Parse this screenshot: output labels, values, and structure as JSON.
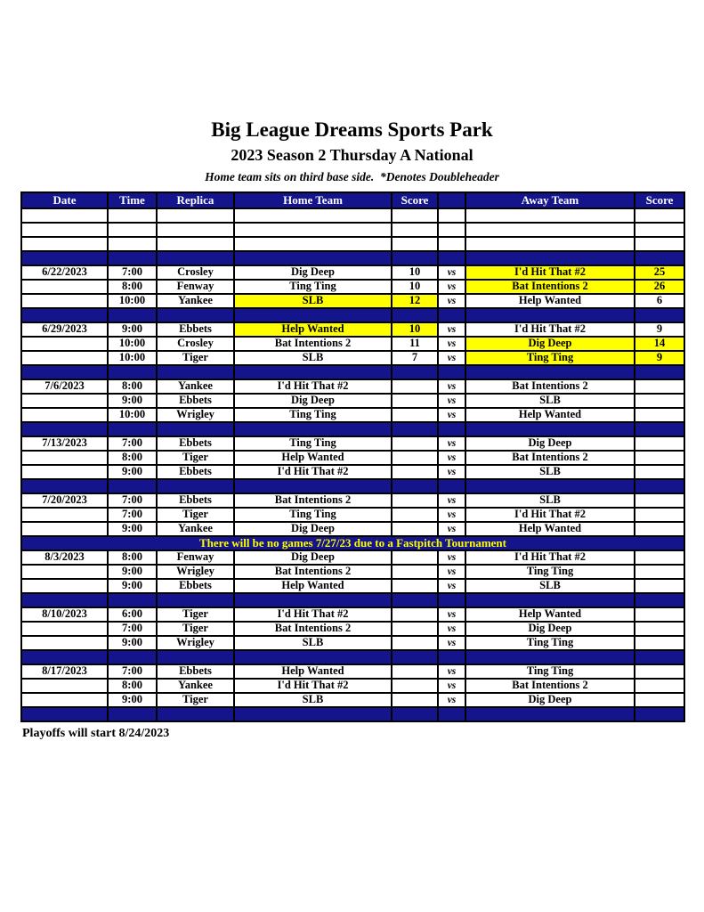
{
  "header": {
    "title": "Big League Dreams Sports Park",
    "subtitle": "2023 Season 2 Thursday A National",
    "note": "Home team sits on third base side.  *Denotes Doubleheader"
  },
  "colors": {
    "navy": "#14148C",
    "highlight_yellow": "#FFFF00",
    "header_text": "#FFFFFF",
    "announcement_text": "#FFFF00",
    "border": "#000000"
  },
  "table": {
    "headers": [
      "Date",
      "Time",
      "Replica",
      "Home Team",
      "Score",
      "",
      "Away Team",
      "Score"
    ],
    "vs_label": "vs",
    "empty_row_count": 3,
    "announcement": "There will be no games 7/27/23 due to a Fastpitch Tournament",
    "blocks": [
      {
        "date": "6/22/2023",
        "separator_before": "plain",
        "games": [
          {
            "time": "7:00",
            "replica": "Crosley",
            "home": "Dig Deep",
            "home_score": "10",
            "away": "I'd Hit That #2",
            "away_score": "25",
            "winner": "away"
          },
          {
            "time": "8:00",
            "replica": "Fenway",
            "home": "Ting Ting",
            "home_score": "10",
            "away": "Bat Intentions 2",
            "away_score": "26",
            "winner": "away"
          },
          {
            "time": "10:00",
            "replica": "Yankee",
            "home": "SLB",
            "home_score": "12",
            "away": "Help Wanted",
            "away_score": "6",
            "winner": "home"
          }
        ]
      },
      {
        "date": "6/29/2023",
        "separator_before": "plain",
        "games": [
          {
            "time": "9:00",
            "replica": "Ebbets",
            "home": "Help Wanted",
            "home_score": "10",
            "away": "I'd Hit That #2",
            "away_score": "9",
            "winner": "home"
          },
          {
            "time": "10:00",
            "replica": "Crosley",
            "home": "Bat Intentions 2",
            "home_score": "11",
            "away": "Dig Deep",
            "away_score": "14",
            "winner": "away"
          },
          {
            "time": "10:00",
            "replica": "Tiger",
            "home": "SLB",
            "home_score": "7",
            "away": "Ting Ting",
            "away_score": "9",
            "winner": "away"
          }
        ]
      },
      {
        "date": "7/6/2023",
        "separator_before": "plain",
        "games": [
          {
            "time": "8:00",
            "replica": "Yankee",
            "home": "I'd Hit That #2",
            "home_score": "",
            "away": "Bat Intentions 2",
            "away_score": "",
            "winner": ""
          },
          {
            "time": "9:00",
            "replica": "Ebbets",
            "home": "Dig Deep",
            "home_score": "",
            "away": "SLB",
            "away_score": "",
            "winner": ""
          },
          {
            "time": "10:00",
            "replica": "Wrigley",
            "home": "Ting Ting",
            "home_score": "",
            "away": "Help Wanted",
            "away_score": "",
            "winner": ""
          }
        ]
      },
      {
        "date": "7/13/2023",
        "separator_before": "plain",
        "games": [
          {
            "time": "7:00",
            "replica": "Ebbets",
            "home": "Ting Ting",
            "home_score": "",
            "away": "Dig Deep",
            "away_score": "",
            "winner": ""
          },
          {
            "time": "8:00",
            "replica": "Tiger",
            "home": "Help Wanted",
            "home_score": "",
            "away": "Bat Intentions 2",
            "away_score": "",
            "winner": ""
          },
          {
            "time": "9:00",
            "replica": "Ebbets",
            "home": "I'd Hit That #2",
            "home_score": "",
            "away": "SLB",
            "away_score": "",
            "winner": ""
          }
        ]
      },
      {
        "date": "7/20/2023",
        "separator_before": "plain",
        "games": [
          {
            "time": "7:00",
            "replica": "Ebbets",
            "home": "Bat Intentions 2",
            "home_score": "",
            "away": "SLB",
            "away_score": "",
            "winner": ""
          },
          {
            "time": "7:00",
            "replica": "Tiger",
            "home": "Ting Ting",
            "home_score": "",
            "away": "I'd Hit That #2",
            "away_score": "",
            "winner": ""
          },
          {
            "time": "9:00",
            "replica": "Yankee",
            "home": "Dig Deep",
            "home_score": "",
            "away": "Help Wanted",
            "away_score": "",
            "winner": ""
          }
        ]
      },
      {
        "date": "8/3/2023",
        "separator_before": "announcement",
        "games": [
          {
            "time": "8:00",
            "replica": "Fenway",
            "home": "Dig Deep",
            "home_score": "",
            "away": "I'd Hit That #2",
            "away_score": "",
            "winner": ""
          },
          {
            "time": "9:00",
            "replica": "Wrigley",
            "home": "Bat Intentions 2",
            "home_score": "",
            "away": "Ting Ting",
            "away_score": "",
            "winner": ""
          },
          {
            "time": "9:00",
            "replica": "Ebbets",
            "home": "Help Wanted",
            "home_score": "",
            "away": "SLB",
            "away_score": "",
            "winner": ""
          }
        ]
      },
      {
        "date": "8/10/2023",
        "separator_before": "plain",
        "games": [
          {
            "time": "6:00",
            "replica": "Tiger",
            "home": "I'd Hit That #2",
            "home_score": "",
            "away": "Help Wanted",
            "away_score": "",
            "winner": ""
          },
          {
            "time": "7:00",
            "replica": "Tiger",
            "home": "Bat Intentions 2",
            "home_score": "",
            "away": "Dig Deep",
            "away_score": "",
            "winner": ""
          },
          {
            "time": "9:00",
            "replica": "Wrigley",
            "home": "SLB",
            "home_score": "",
            "away": "Ting Ting",
            "away_score": "",
            "winner": ""
          }
        ]
      },
      {
        "date": "8/17/2023",
        "separator_before": "plain",
        "games": [
          {
            "time": "7:00",
            "replica": "Ebbets",
            "home": "Help Wanted",
            "home_score": "",
            "away": "Ting Ting",
            "away_score": "",
            "winner": ""
          },
          {
            "time": "8:00",
            "replica": "Yankee",
            "home": "I'd Hit That #2",
            "home_score": "",
            "away": "Bat Intentions 2",
            "away_score": "",
            "winner": ""
          },
          {
            "time": "9:00",
            "replica": "Tiger",
            "home": "SLB",
            "home_score": "",
            "away": "Dig Deep",
            "away_score": "",
            "winner": ""
          }
        ]
      }
    ]
  },
  "footer": {
    "text": "Playoffs will start 8/24/2023"
  }
}
